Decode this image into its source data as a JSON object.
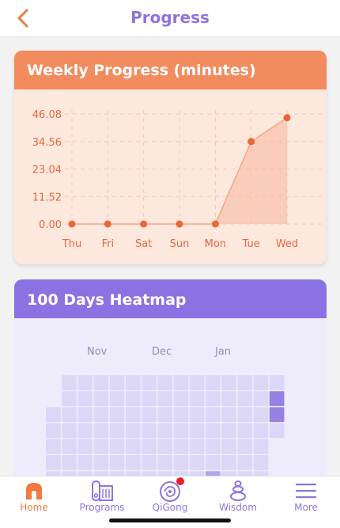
{
  "header": {
    "title": "Progress"
  },
  "weekly": {
    "title": "Weekly Progress (minutes)",
    "accent": "#e8683a",
    "chart_data": {
      "type": "area",
      "categories": [
        "Thu",
        "Fri",
        "Sat",
        "Sun",
        "Mon",
        "Tue",
        "Wed"
      ],
      "values": [
        0,
        0,
        0,
        0,
        0,
        34.56,
        44.5
      ],
      "yticks": [
        "46.08",
        "34.56",
        "23.04",
        "11.52",
        "0.00"
      ],
      "ylim": [
        0,
        46.08
      ],
      "grid": true
    }
  },
  "heatmap": {
    "title": "100 Days Heatmap",
    "months": [
      "Nov",
      "Dec",
      "Jan"
    ],
    "base_color": "#dcd6f7",
    "active_color": "#9680e4"
  },
  "tabs": [
    {
      "label": "Home",
      "icon": "home-icon"
    },
    {
      "label": "Programs",
      "icon": "programs-icon"
    },
    {
      "label": "QiGong",
      "icon": "qigong-icon"
    },
    {
      "label": "Wisdom",
      "icon": "wisdom-icon"
    },
    {
      "label": "More",
      "icon": "menu-icon"
    }
  ]
}
